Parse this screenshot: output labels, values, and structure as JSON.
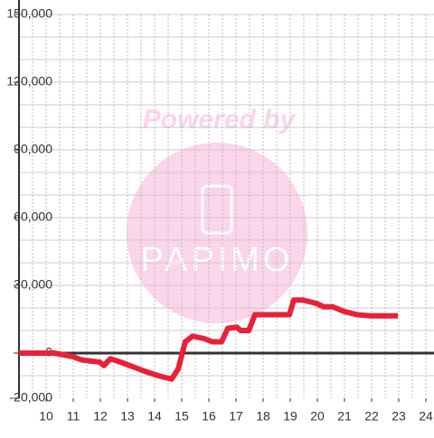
{
  "chart_data": {
    "type": "line",
    "watermark": {
      "title": "Powered by",
      "brand": "PAPIMO"
    },
    "x": [
      9,
      10.3,
      10.97,
      11.3,
      11.97,
      12.13,
      12.37,
      12.63,
      12.97,
      13.3,
      13.63,
      14.13,
      14.63,
      14.87,
      15.13,
      15.4,
      15.8,
      16.13,
      16.47,
      16.7,
      17.03,
      17.17,
      17.47,
      17.7,
      18.97,
      19.13,
      19.47,
      19.97,
      20.23,
      20.57,
      20.97,
      21.47,
      21.97,
      22.97
    ],
    "series": [
      {
        "color": "#e8213a",
        "values": [
          0,
          0,
          -1500,
          -3000,
          -4000,
          -5500,
          -2500,
          -3500,
          -5000,
          -6500,
          -8000,
          -10000,
          -11500,
          -7000,
          5000,
          7500,
          6500,
          5000,
          5000,
          11000,
          11500,
          10000,
          10000,
          17000,
          17000,
          23500,
          23500,
          22000,
          20500,
          20500,
          18500,
          17000,
          16500,
          16500
        ]
      }
    ],
    "xlim": [
      9,
      24.3
    ],
    "xticks": [
      10,
      11,
      12,
      13,
      14,
      15,
      16,
      17,
      18,
      19,
      20,
      21,
      22,
      23,
      24
    ],
    "xgrid": [
      9.5,
      10,
      10.5,
      11,
      11.5,
      12,
      12.5,
      13,
      13.5,
      14,
      14.5,
      15,
      15.5,
      16,
      16.5,
      17,
      17.5,
      18,
      18.5,
      19,
      19.5,
      20,
      20.5,
      21,
      21.5,
      22,
      22.5,
      23,
      23.5,
      24
    ],
    "ylim": [
      -20000,
      150000
    ],
    "yticks": [
      {
        "value": -20000,
        "label": "-20,000"
      },
      0,
      {
        "value": 30000,
        "label": "30,000"
      },
      {
        "value": 60000,
        "label": "60,000"
      },
      {
        "value": 90000,
        "label": "90,000"
      },
      {
        "value": 120000,
        "label": "120,000"
      },
      {
        "value": 150000,
        "label": "150,000"
      }
    ],
    "ygrid": [
      -10000,
      10000,
      20000,
      30000,
      40000,
      50000,
      60000,
      70000,
      80000,
      90000,
      100000,
      110000,
      120000,
      130000,
      140000,
      150000
    ]
  }
}
